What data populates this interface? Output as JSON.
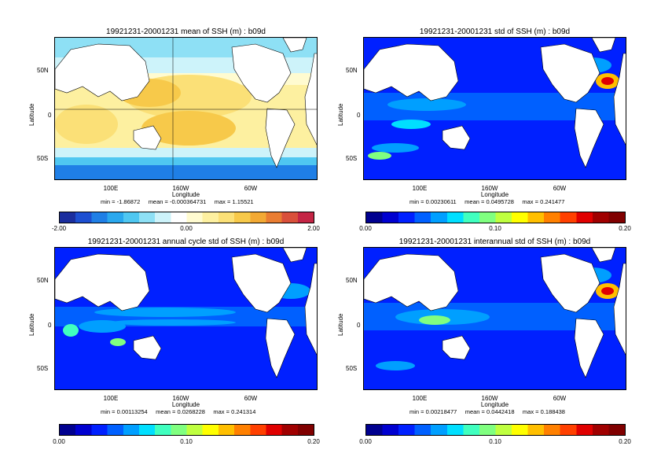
{
  "axis": {
    "ylabel": "Latitude",
    "xlabel": "Longitude",
    "yticks": [
      "50N",
      "0",
      "50S"
    ],
    "xticks": [
      "100E",
      "160W",
      "60W"
    ]
  },
  "stat_labels": {
    "min": "min =",
    "mean": "mean =",
    "max": "max ="
  },
  "palettes": {
    "diverging": [
      "#1b2e9e",
      "#1d4fd1",
      "#1f7fe6",
      "#2aa8ee",
      "#4fc7f1",
      "#8ee0f5",
      "#cdf3fa",
      "#ffffff",
      "#fffbd0",
      "#fdf0a0",
      "#fbe077",
      "#f7c94a",
      "#f2a934",
      "#e97d32",
      "#d9503b",
      "#c42545"
    ],
    "rainbow": [
      "#00008f",
      "#0000d0",
      "#0020ff",
      "#0060ff",
      "#009fff",
      "#00dfff",
      "#40ffbf",
      "#80ff80",
      "#bfff40",
      "#ffff00",
      "#ffbf00",
      "#ff8000",
      "#ff4000",
      "#e00000",
      "#a00000",
      "#800000"
    ]
  },
  "panels": [
    {
      "title": "19921231-20001231 mean of SSH (m) : b09d",
      "palette": "diverging",
      "stats": {
        "min": "-1.86872",
        "mean": "-0.000364731",
        "max": "1.15521"
      },
      "cbar_labels": [
        "-2.00",
        "0.00",
        "2.00"
      ]
    },
    {
      "title": "19921231-20001231 std of SSH (m) : b09d",
      "palette": "rainbow",
      "stats": {
        "min": "0.00230611",
        "mean": "0.0495728",
        "max": "0.241477"
      },
      "cbar_labels": [
        "0.00",
        "0.10",
        "0.20"
      ]
    },
    {
      "title": "19921231-20001231 annual cycle std of SSH (m) : b09d",
      "palette": "rainbow",
      "stats": {
        "min": "0.00113254",
        "mean": "0.0268228",
        "max": "0.241314"
      },
      "cbar_labels": [
        "0.00",
        "0.10",
        "0.20"
      ]
    },
    {
      "title": "19921231-20001231 interannual std of SSH (m) : b09d",
      "palette": "rainbow",
      "stats": {
        "min": "0.00218477",
        "mean": "0.0442418",
        "max": "0.188438"
      },
      "cbar_labels": [
        "0.00",
        "0.10",
        "0.20"
      ]
    }
  ]
}
